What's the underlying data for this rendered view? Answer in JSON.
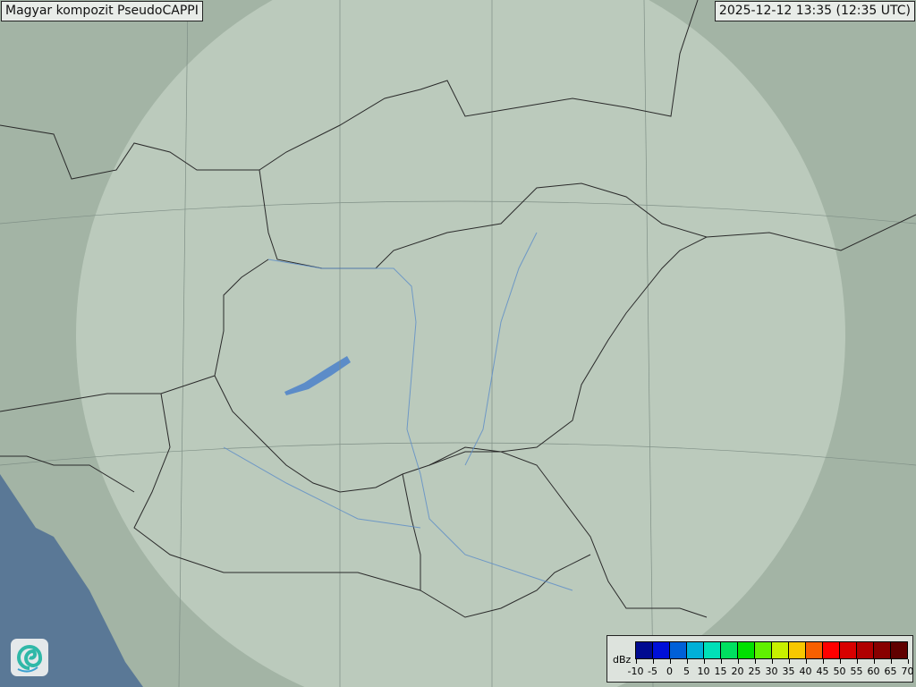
{
  "header": {
    "title": "Magyar kompozit  PseudoCAPPI",
    "timestamp": "2025-12-12 13:35 (12:35 UTC)"
  },
  "legend": {
    "unit": "dBz",
    "ticks": [
      "-10",
      "-5",
      "0",
      "5",
      "10",
      "15",
      "20",
      "25",
      "30",
      "35",
      "40",
      "45",
      "50",
      "55",
      "60",
      "65",
      "70"
    ],
    "colors": [
      "#000a90",
      "#0010d8",
      "#0060d8",
      "#00b0d8",
      "#00e0b8",
      "#00e060",
      "#00e000",
      "#60f000",
      "#c8f000",
      "#f8c800",
      "#f86000",
      "#ff0000",
      "#d80000",
      "#b00000",
      "#880000",
      "#600000"
    ]
  },
  "map": {
    "land_color": "#a3b4a5",
    "coverage_color": "#c9d8cc",
    "sea_color": "#5a7896",
    "border_color": "#2a2a2a",
    "river_color": "#5c8cc8"
  },
  "logo": {
    "icon": "swirl-logo-icon"
  }
}
